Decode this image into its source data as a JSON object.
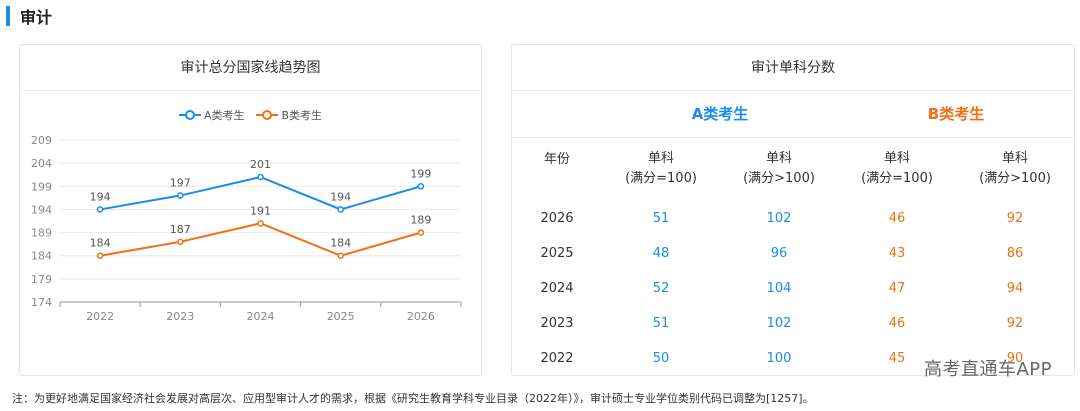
{
  "section": {
    "title": "审计"
  },
  "chart_card": {
    "title": "审计总分国家线趋势图"
  },
  "chart_data": {
    "type": "line",
    "title": "审计总分国家线趋势图",
    "categories": [
      "2022",
      "2023",
      "2024",
      "2025",
      "2026"
    ],
    "series": [
      {
        "name": "A类考生",
        "color": "#1a8cf0",
        "values": [
          194,
          197,
          201,
          194,
          199
        ]
      },
      {
        "name": "B类考生",
        "color": "#f07018",
        "values": [
          184,
          187,
          191,
          184,
          189
        ]
      }
    ],
    "yticks": [
      174,
      179,
      184,
      189,
      194,
      199,
      204,
      209
    ],
    "ylim": [
      174,
      209
    ],
    "legend_position": "top",
    "grid": true
  },
  "table_card": {
    "title": "审计单科分数",
    "group_a": "A类考生",
    "group_b": "B类考生",
    "year_header": "年份",
    "col_a1": {
      "line1": "单科",
      "line2": "(满分=100)"
    },
    "col_a2": {
      "line1": "单科",
      "line2": "(满分>100)"
    },
    "col_b1": {
      "line1": "单科",
      "line2": "(满分=100)"
    },
    "col_b2": {
      "line1": "单科",
      "line2": "(满分>100)"
    },
    "rows": [
      {
        "year": "2026",
        "a1": "51",
        "a2": "102",
        "b1": "46",
        "b2": "92"
      },
      {
        "year": "2025",
        "a1": "48",
        "a2": "96",
        "b1": "43",
        "b2": "86"
      },
      {
        "year": "2024",
        "a1": "52",
        "a2": "104",
        "b1": "47",
        "b2": "94"
      },
      {
        "year": "2023",
        "a1": "51",
        "a2": "102",
        "b1": "46",
        "b2": "92"
      },
      {
        "year": "2022",
        "a1": "50",
        "a2": "100",
        "b1": "45",
        "b2": "90"
      }
    ]
  },
  "watermark": "高考直通车APP",
  "footnote": "注：为更好地满足国家经济社会发展对高层次、应用型审计人才的需求，根据《研究生教育学科专业目录（2022年）》，审计硕士专业学位类别代码已调整为[1257]。",
  "colors": {
    "accent": "#1a8cf0",
    "a_series": "#1a8cf0",
    "b_series": "#f07018"
  }
}
